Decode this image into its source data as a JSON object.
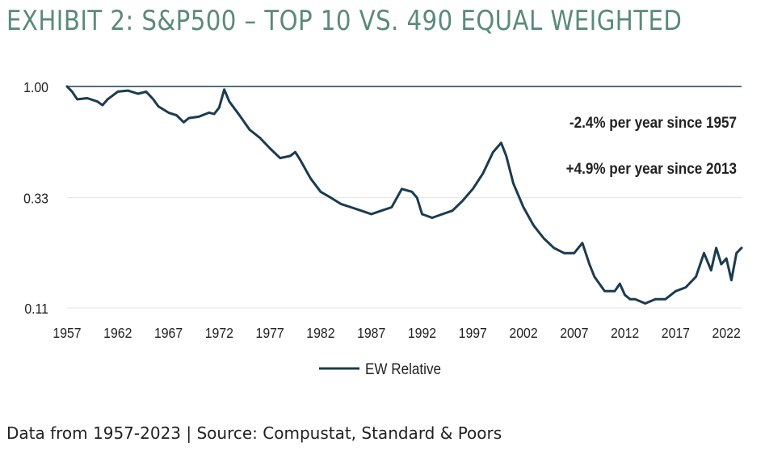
{
  "title": "EXHIBIT 2: S&P500 – TOP 10 VS. 490 EQUAL WEIGHTED",
  "source": "Data from 1957-2023 | Source: Compustat, Standard & Poors",
  "colors": {
    "title": "#5b8a7a",
    "line": "#1b3b4f",
    "grid": "#e3e3e3",
    "text": "#222222"
  },
  "chart_data": {
    "type": "line",
    "title": "",
    "xlabel": "",
    "ylabel": "",
    "y_scale": "log",
    "ylim": [
      0.11,
      1.0
    ],
    "xlim": [
      1957,
      2023.5
    ],
    "y_ticks": [
      1.0,
      0.33,
      0.11
    ],
    "y_tick_labels": [
      "1.00",
      "0.33",
      "0.11"
    ],
    "x_ticks": [
      1957,
      1962,
      1967,
      1972,
      1977,
      1982,
      1987,
      1992,
      1997,
      2002,
      2007,
      2012,
      2017,
      2022
    ],
    "x_tick_labels": [
      "1957",
      "1962",
      "1967",
      "1972",
      "1977",
      "1982",
      "1987",
      "1992",
      "1997",
      "2002",
      "2007",
      "2012",
      "2017",
      "2022"
    ],
    "annotations": [
      "-2.4% per year since 1957",
      "+4.9% per year since 2013"
    ],
    "legend": {
      "placement": "bottom",
      "entries": [
        "EW Relative"
      ]
    },
    "series": [
      {
        "name": "EW Relative",
        "x": [
          1957,
          1957.5,
          1958,
          1959,
          1960,
          1960.5,
          1961,
          1962,
          1963,
          1964,
          1964.8,
          1965.5,
          1966,
          1967,
          1967.8,
          1968.5,
          1969,
          1970,
          1971,
          1971.5,
          1972,
          1972.5,
          1973,
          1974,
          1975,
          1976,
          1977,
          1978,
          1979,
          1979.5,
          1980,
          1981,
          1982,
          1983,
          1984,
          1985,
          1986,
          1987,
          1988,
          1989,
          1990,
          1991,
          1991.5,
          1992,
          1993,
          1994,
          1995,
          1996,
          1997,
          1998,
          1999,
          1999.8,
          2000.3,
          2001,
          2002,
          2003,
          2004,
          2005,
          2006,
          2007,
          2007.8,
          2008.5,
          2009,
          2010,
          2011,
          2011.5,
          2012,
          2012.5,
          2013,
          2014,
          2015,
          2016,
          2017,
          2018,
          2019,
          2019.8,
          2020.5,
          2021,
          2021.5,
          2022,
          2022.5,
          2023,
          2023.5
        ],
        "y": [
          1.0,
          0.95,
          0.88,
          0.89,
          0.86,
          0.83,
          0.88,
          0.95,
          0.96,
          0.93,
          0.95,
          0.88,
          0.82,
          0.77,
          0.75,
          0.7,
          0.73,
          0.74,
          0.77,
          0.76,
          0.81,
          0.97,
          0.86,
          0.75,
          0.65,
          0.6,
          0.54,
          0.49,
          0.5,
          0.52,
          0.48,
          0.4,
          0.35,
          0.33,
          0.31,
          0.3,
          0.29,
          0.28,
          0.29,
          0.3,
          0.36,
          0.35,
          0.33,
          0.28,
          0.27,
          0.28,
          0.29,
          0.32,
          0.36,
          0.42,
          0.52,
          0.57,
          0.5,
          0.38,
          0.3,
          0.25,
          0.22,
          0.2,
          0.19,
          0.19,
          0.21,
          0.17,
          0.15,
          0.13,
          0.13,
          0.14,
          0.125,
          0.12,
          0.12,
          0.115,
          0.12,
          0.12,
          0.13,
          0.135,
          0.15,
          0.19,
          0.16,
          0.2,
          0.17,
          0.18,
          0.145,
          0.19,
          0.2
        ]
      }
    ]
  }
}
